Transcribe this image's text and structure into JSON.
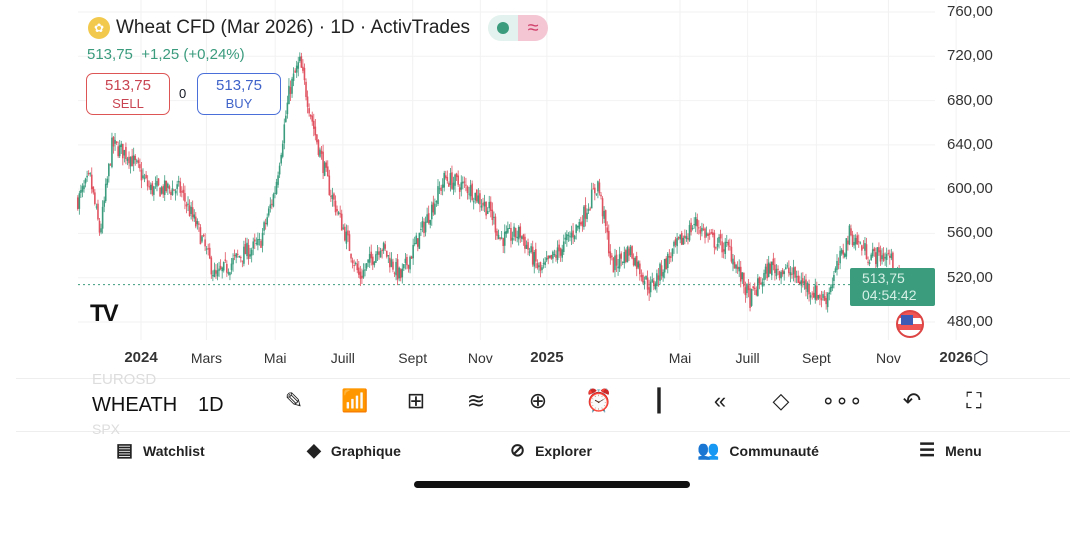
{
  "header": {
    "title": "Wheat CFD (Mar 2026) · 1D · ActivTrades",
    "status_dot_color": "#3a9b7d",
    "wave_icon": "≈"
  },
  "quote": {
    "price": "513,75",
    "change": "+1,25",
    "change_pct": "(+0,24%)",
    "text": "513,75  +1,25 (+0,24%)"
  },
  "trade": {
    "sell_price": "513,75",
    "sell_label": "SELL",
    "spread": "0",
    "buy_price": "513,75",
    "buy_label": "BUY"
  },
  "price_label": {
    "price": "513,75",
    "countdown": "04:54:42"
  },
  "colors": {
    "up": "#3a9b7d",
    "down": "#e05260",
    "accent": "#3a9b7d"
  },
  "chart_data": {
    "type": "candlestick",
    "title": "Wheat CFD (Mar 2026) · 1D",
    "y_ticks": [
      "760,00",
      "720,00",
      "680,00",
      "640,00",
      "600,00",
      "560,00",
      "520,00",
      "480,00"
    ],
    "ylim": [
      480,
      760
    ],
    "x_ticks": [
      {
        "label": "2024",
        "bold": true,
        "day": 0
      },
      {
        "label": "Mars",
        "day": 59
      },
      {
        "label": "Mai",
        "day": 121
      },
      {
        "label": "Juill",
        "day": 182
      },
      {
        "label": "Sept",
        "day": 245
      },
      {
        "label": "Nov",
        "day": 306
      },
      {
        "label": "2025",
        "bold": true,
        "day": 366
      },
      {
        "label": "Mai",
        "day": 486
      },
      {
        "label": "Juill",
        "day": 547
      },
      {
        "label": "Sept",
        "day": 609
      },
      {
        "label": "Nov",
        "day": 674
      },
      {
        "label": "2026",
        "bold": true,
        "day": 735
      }
    ],
    "x_unit": "days since 2024-01-01",
    "close_keypoints": [
      [
        -57,
        590
      ],
      [
        -46,
        610
      ],
      [
        -37,
        560
      ],
      [
        -26,
        640
      ],
      [
        -10,
        630
      ],
      [
        8,
        600
      ],
      [
        35,
        600
      ],
      [
        53,
        560
      ],
      [
        67,
        520
      ],
      [
        89,
        540
      ],
      [
        107,
        550
      ],
      [
        121,
        600
      ],
      [
        134,
        690
      ],
      [
        143,
        715
      ],
      [
        157,
        650
      ],
      [
        170,
        600
      ],
      [
        184,
        560
      ],
      [
        197,
        520
      ],
      [
        216,
        550
      ],
      [
        234,
        520
      ],
      [
        252,
        560
      ],
      [
        274,
        610
      ],
      [
        297,
        600
      ],
      [
        315,
        580
      ],
      [
        324,
        555
      ],
      [
        342,
        560
      ],
      [
        360,
        525
      ],
      [
        378,
        545
      ],
      [
        396,
        570
      ],
      [
        412,
        605
      ],
      [
        425,
        530
      ],
      [
        441,
        545
      ],
      [
        459,
        510
      ],
      [
        477,
        540
      ],
      [
        500,
        570
      ],
      [
        513,
        555
      ],
      [
        531,
        545
      ],
      [
        549,
        500
      ],
      [
        567,
        530
      ],
      [
        585,
        525
      ],
      [
        603,
        510
      ],
      [
        617,
        500
      ],
      [
        639,
        560
      ],
      [
        657,
        540
      ],
      [
        675,
        540
      ],
      [
        684,
        510
      ],
      [
        695,
        513.75
      ]
    ],
    "last_price": 513.75
  },
  "toolbar": {
    "symbol": "WHEATH",
    "symbol_above": "EUROSD",
    "symbol_below": "SPX",
    "interval": "1D"
  },
  "nav": [
    {
      "label": "Watchlist"
    },
    {
      "label": "Graphique"
    },
    {
      "label": "Explorer"
    },
    {
      "label": "Communauté"
    },
    {
      "label": "Menu"
    }
  ],
  "watermark": "TV"
}
